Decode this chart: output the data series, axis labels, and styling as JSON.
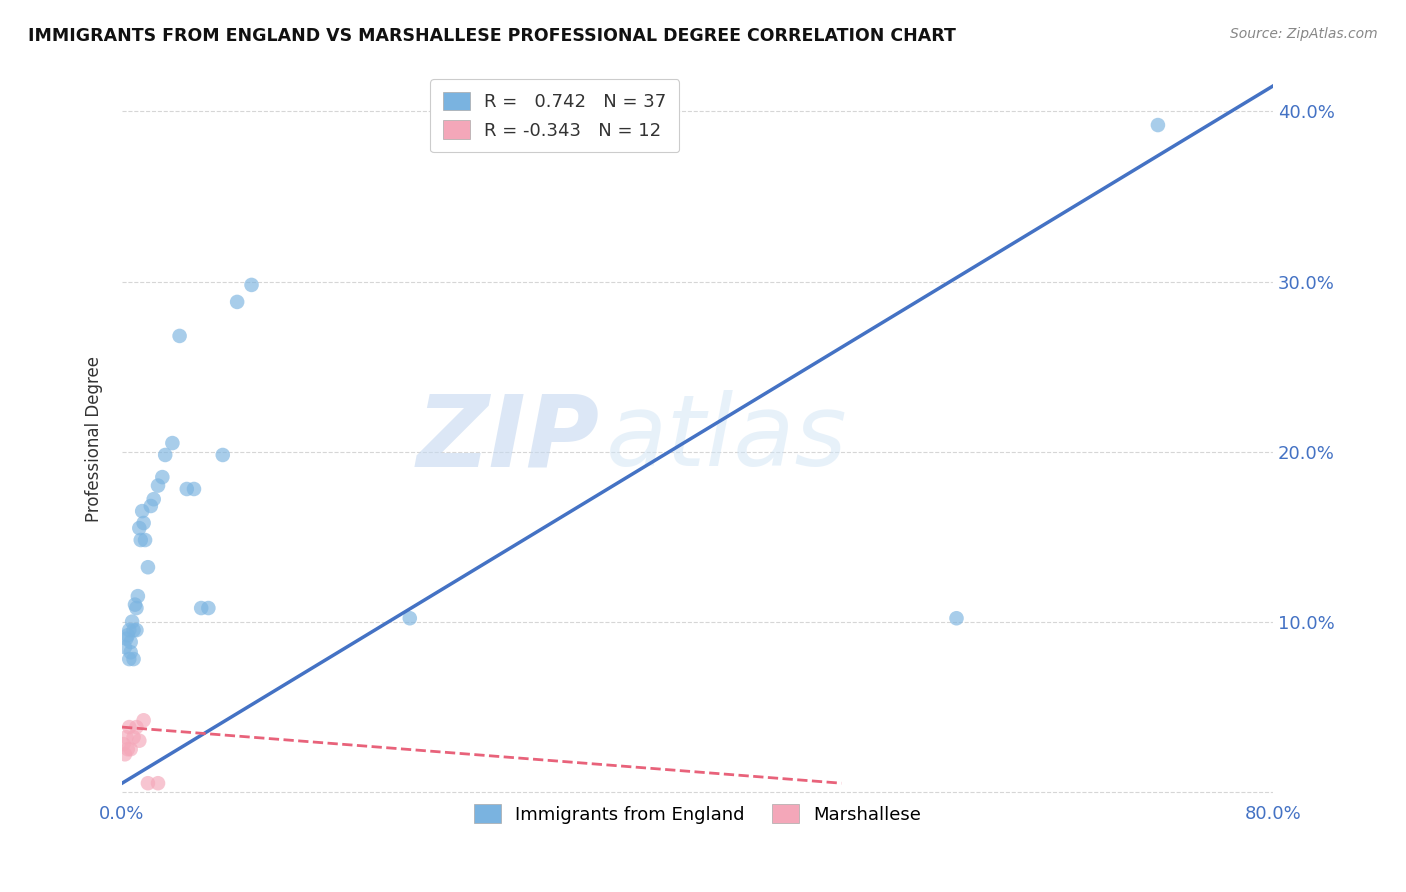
{
  "title": "IMMIGRANTS FROM ENGLAND VS MARSHALLESE PROFESSIONAL DEGREE CORRELATION CHART",
  "source": "Source: ZipAtlas.com",
  "ylabel": "Professional Degree",
  "xlim": [
    0.0,
    0.8
  ],
  "ylim": [
    -0.005,
    0.42
  ],
  "x_ticks": [
    0.0,
    0.1,
    0.2,
    0.3,
    0.4,
    0.5,
    0.6,
    0.7,
    0.8
  ],
  "y_ticks": [
    0.0,
    0.1,
    0.2,
    0.3,
    0.4
  ],
  "legend_entries": [
    {
      "label": "R =   0.742   N = 37"
    },
    {
      "label": "R = -0.343   N = 12"
    }
  ],
  "blue_scatter_x": [
    0.002,
    0.003,
    0.004,
    0.005,
    0.005,
    0.006,
    0.006,
    0.007,
    0.008,
    0.008,
    0.009,
    0.01,
    0.01,
    0.011,
    0.012,
    0.013,
    0.014,
    0.015,
    0.016,
    0.018,
    0.02,
    0.022,
    0.025,
    0.028,
    0.03,
    0.035,
    0.04,
    0.045,
    0.05,
    0.055,
    0.06,
    0.07,
    0.08,
    0.09,
    0.2,
    0.58,
    0.72
  ],
  "blue_scatter_y": [
    0.085,
    0.09,
    0.092,
    0.078,
    0.095,
    0.082,
    0.088,
    0.1,
    0.078,
    0.095,
    0.11,
    0.095,
    0.108,
    0.115,
    0.155,
    0.148,
    0.165,
    0.158,
    0.148,
    0.132,
    0.168,
    0.172,
    0.18,
    0.185,
    0.198,
    0.205,
    0.268,
    0.178,
    0.178,
    0.108,
    0.108,
    0.198,
    0.288,
    0.298,
    0.102,
    0.102,
    0.392
  ],
  "pink_scatter_x": [
    0.001,
    0.002,
    0.003,
    0.004,
    0.005,
    0.006,
    0.008,
    0.01,
    0.012,
    0.015,
    0.018,
    0.025
  ],
  "pink_scatter_y": [
    0.028,
    0.022,
    0.032,
    0.025,
    0.038,
    0.025,
    0.032,
    0.038,
    0.03,
    0.042,
    0.005,
    0.005
  ],
  "blue_line_x": [
    0.0,
    0.8
  ],
  "blue_line_y": [
    0.005,
    0.415
  ],
  "pink_line_x": [
    0.0,
    0.5
  ],
  "pink_line_y": [
    0.038,
    0.005
  ],
  "blue_color": "#4472c4",
  "pink_color": "#e8627a",
  "scatter_blue": "#7ab3e0",
  "scatter_pink": "#f4a7b9",
  "watermark_zip": "ZIP",
  "watermark_atlas": "atlas",
  "background_color": "#ffffff",
  "grid_color": "#cccccc"
}
